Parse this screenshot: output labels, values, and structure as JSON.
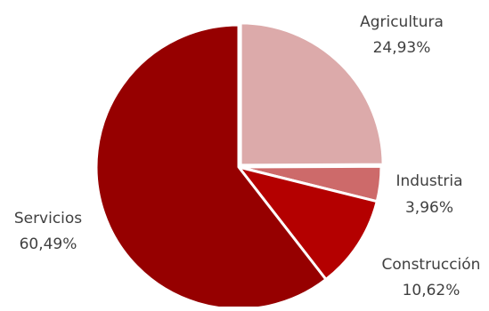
{
  "chart_data": {
    "type": "pie",
    "title": "",
    "slices": [
      {
        "label": "Agricultura",
        "value": 24.93,
        "value_label": "24,93%",
        "color": "#DCAAAA"
      },
      {
        "label": "Industria",
        "value": 3.96,
        "value_label": "3,96%",
        "color": "#CD6A6A"
      },
      {
        "label": "Construcción",
        "value": 10.62,
        "value_label": "10,62%",
        "color": "#B40000"
      },
      {
        "label": "Servicios",
        "value": 60.49,
        "value_label": "60,49%",
        "color": "#960000"
      }
    ],
    "start_angle_deg": 0,
    "direction": "clockwise",
    "legend": "none",
    "data_labels": "outside"
  }
}
